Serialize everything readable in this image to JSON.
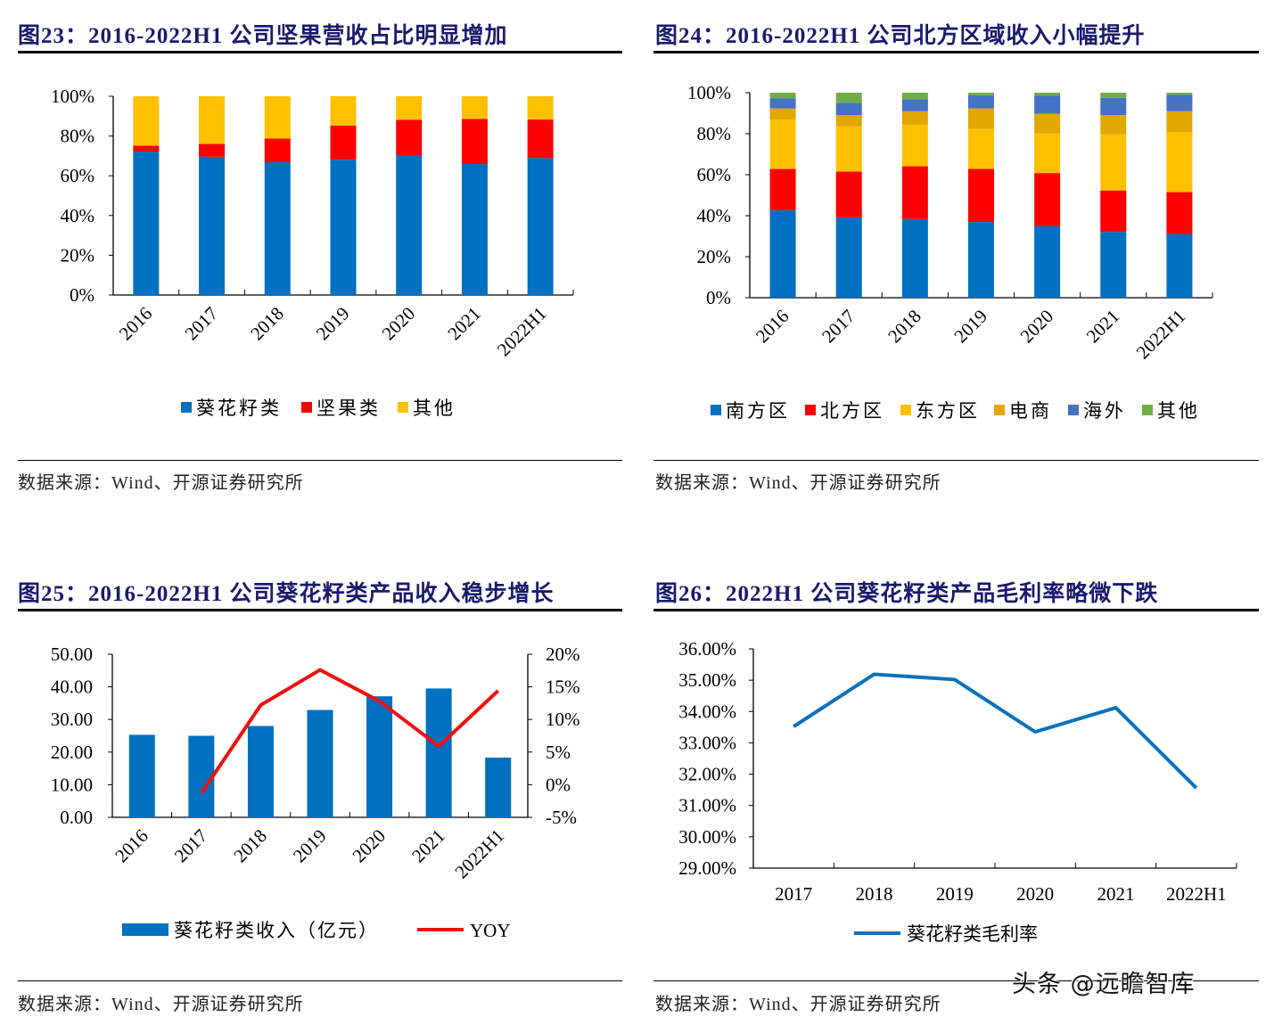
{
  "colors": {
    "title": "#1a1a6e",
    "blue": "#0070c0",
    "red": "#ff0000",
    "yellow": "#ffc000",
    "gold": "#e0a800",
    "navy": "#4472c4",
    "green": "#70ad47",
    "line_red": "#ee1111",
    "line_blue": "#0b72bb"
  },
  "watermark": "头条 @远瞻智库",
  "chart_data": [
    {
      "id": "fig23",
      "title": "图23：2016-2022H1 公司坚果营收占比明显增加",
      "source": "数据来源：Wind、开源证券研究所",
      "type": "bar",
      "stacked": true,
      "categories": [
        "2016",
        "2017",
        "2018",
        "2019",
        "2020",
        "2021",
        "2022H1"
      ],
      "y_ticks": [
        "0%",
        "20%",
        "40%",
        "60%",
        "80%",
        "100%"
      ],
      "ylim": [
        0,
        100
      ],
      "unit": "%",
      "legend_position": "bottom",
      "series": [
        {
          "name": "葵花籽类",
          "color": "#0070c0",
          "values": [
            72.2,
            69.6,
            66.8,
            68.1,
            70.4,
            65.9,
            68.9
          ]
        },
        {
          "name": "坚果类",
          "color": "#ff0000",
          "values": [
            2.9,
            6.4,
            11.9,
            17.1,
            17.8,
            22.7,
            19.4
          ]
        },
        {
          "name": "其他",
          "color": "#ffc000",
          "values": [
            24.9,
            24.0,
            21.3,
            14.8,
            11.8,
            11.4,
            11.7
          ]
        }
      ]
    },
    {
      "id": "fig24",
      "title": "图24：2016-2022H1 公司北方区域收入小幅提升",
      "source": "数据来源：Wind、开源证券研究所",
      "type": "bar",
      "stacked": true,
      "categories": [
        "2016",
        "2017",
        "2018",
        "2019",
        "2020",
        "2021",
        "2022H1"
      ],
      "y_ticks": [
        "0%",
        "20%",
        "40%",
        "60%",
        "80%",
        "100%"
      ],
      "ylim": [
        0,
        100
      ],
      "unit": "%",
      "legend_position": "bottom",
      "series": [
        {
          "name": "南方区",
          "color": "#0070c0",
          "values": [
            42.7,
            39.2,
            38.4,
            36.9,
            35.0,
            32.1,
            31.1
          ]
        },
        {
          "name": "北方区",
          "color": "#ff0000",
          "values": [
            20.1,
            22.3,
            25.7,
            25.9,
            25.8,
            20.2,
            20.4
          ]
        },
        {
          "name": "东方区",
          "color": "#ffc000",
          "values": [
            24.0,
            22.1,
            20.3,
            19.5,
            19.3,
            27.4,
            29.2
          ]
        },
        {
          "name": "电商",
          "color": "#e0a800",
          "values": [
            5.5,
            5.5,
            6.6,
            10.0,
            9.6,
            9.4,
            10.3
          ]
        },
        {
          "name": "海外",
          "color": "#4472c4",
          "values": [
            4.9,
            6.0,
            5.8,
            6.5,
            8.8,
            8.4,
            8.0
          ]
        },
        {
          "name": "其他",
          "color": "#70ad47",
          "values": [
            2.8,
            4.9,
            3.2,
            1.2,
            1.5,
            2.5,
            1.0
          ]
        }
      ]
    },
    {
      "id": "fig25",
      "title": "图25：2016-2022H1 公司葵花籽类产品收入稳步增长",
      "source": "数据来源：Wind、开源证券研究所",
      "type": "bar+line",
      "categories": [
        "2016",
        "2017",
        "2018",
        "2019",
        "2020",
        "2021",
        "2022H1"
      ],
      "y_ticks": [
        "0.00",
        "10.00",
        "20.00",
        "30.00",
        "40.00",
        "50.00"
      ],
      "ylim": [
        0,
        50
      ],
      "y2_ticks": [
        "-5%",
        "0%",
        "5%",
        "10%",
        "15%",
        "20%"
      ],
      "y2lim": [
        -5,
        20
      ],
      "legend_position": "bottom",
      "series": [
        {
          "name": "葵花籽类收入（亿元）",
          "kind": "bar",
          "axis": "left",
          "color": "#0070c0",
          "values": [
            25.3,
            25.0,
            28.0,
            32.9,
            37.1,
            39.5,
            18.3
          ]
        },
        {
          "name": "YOY",
          "kind": "line",
          "axis": "right",
          "color": "#ee1111",
          "values": [
            null,
            -1.3,
            12.2,
            17.6,
            12.8,
            5.9,
            14.4
          ]
        }
      ]
    },
    {
      "id": "fig26",
      "title": "图26：2022H1 公司葵花籽类产品毛利率略微下跌",
      "source": "数据来源：Wind、开源证券研究所",
      "type": "line",
      "categories": [
        "2017",
        "2018",
        "2019",
        "2020",
        "2021",
        "2022H1"
      ],
      "y_ticks": [
        "29.00%",
        "30.00%",
        "31.00%",
        "32.00%",
        "33.00%",
        "34.00%",
        "35.00%",
        "36.00%"
      ],
      "ylim": [
        29,
        36
      ],
      "legend_position": "bottom",
      "series": [
        {
          "name": "葵花籽类毛利率",
          "kind": "line",
          "color": "#0b72bb",
          "values": [
            33.52,
            35.19,
            35.02,
            33.35,
            34.12,
            31.56
          ]
        }
      ]
    }
  ]
}
